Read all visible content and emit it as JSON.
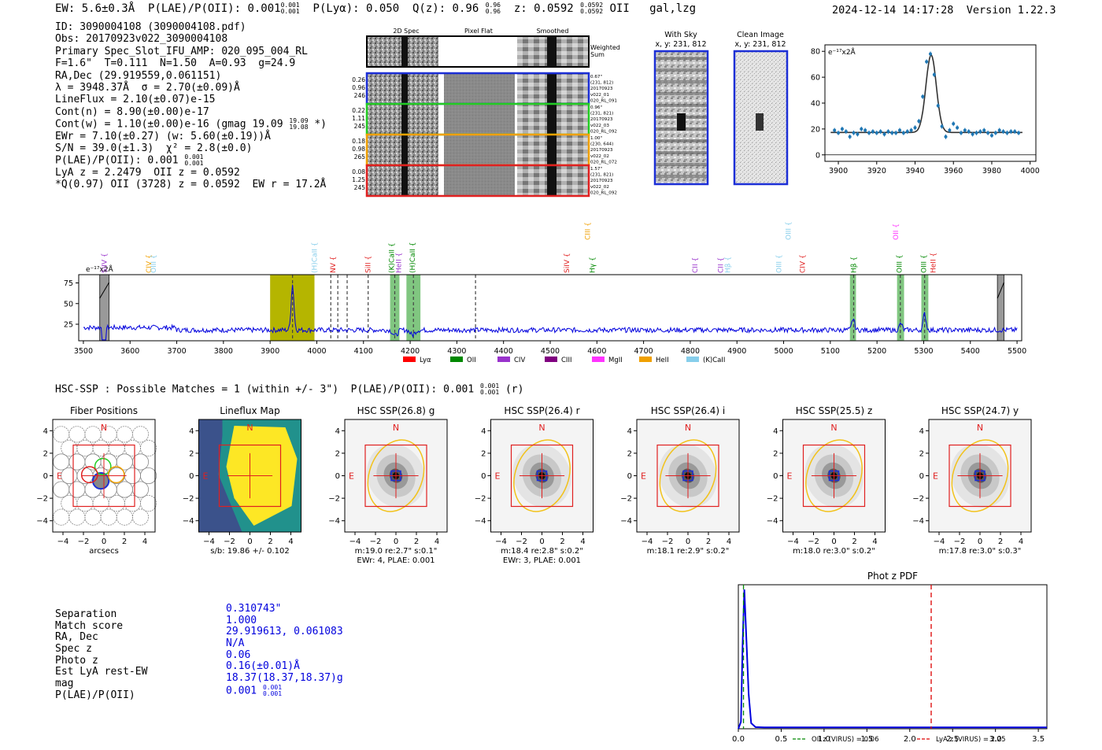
{
  "header": {
    "ew": "EW: 5.6±0.3Å",
    "plae_label": "P(LAE)/P(OII): 0.001",
    "plae_hi": "0.001",
    "plae_lo": "0.001",
    "plya": "P(Lyα): 0.050",
    "qz": "Q(z): 0.96",
    "qz_hi": "0.96",
    "qz_lo": "0.96",
    "z": "z: 0.0592",
    "z_hi": "0.0592",
    "z_lo": "0.0592",
    "z_type": "OII",
    "flags": "gal,lzg",
    "timestamp": "2024-12-14 14:17:28",
    "version": "Version 1.22.3"
  },
  "info": {
    "id": "ID: 3090004108 (3090004108.pdf)",
    "obs": "Obs: 20170923v022_3090004108",
    "primary": "Primary Spec_Slot_IFU_AMP: 020_095_004_RL",
    "fwhm": "F=1.6\"  T=0.111  N=1.50  A=0.93  g=24.9",
    "radec": "RA,Dec (29.919559,0.061151)",
    "lambda": "λ = 3948.37Å  σ = 2.70(±0.09)Å",
    "lineflux": "LineFlux = 2.10(±0.07)e-15",
    "contn": "Cont(n) = 8.90(±0.00)e-17",
    "contw": "Cont(w) = 1.10(±0.00)e-16 (gmag 19.09",
    "contw_hi": "19.09",
    "contw_lo": "19.08",
    "contw_end": "*)",
    "ewr": "EWr = 7.10(±0.27) (w: 5.60(±0.19))Å",
    "sn": "S/N = 39.0(±1.3)  χ² = 2.8(±0.0)",
    "plae": "P(LAE)/P(OII): 0.001",
    "plae_hi": "0.001",
    "plae_lo": "0.001",
    "lya": "LyA z = 2.2479  OII z = 0.0592",
    "q": "*Q(0.97) OII (3728) z = 0.0592  EW r = 17.2Å"
  },
  "cutouts": {
    "col_labels": [
      "2D Spec",
      "Pixel Flat",
      "Smoothed"
    ],
    "weighted": "Weighted Sum",
    "rows": [
      {
        "vals": [
          "0.26",
          "0.96",
          "246"
        ],
        "meta": [
          "0.67\"",
          "(231, 812)",
          "20170923",
          "v022_01",
          "020_RL_091"
        ],
        "color": "#1c2fd6"
      },
      {
        "vals": [
          "0.22",
          "1.11",
          "245"
        ],
        "meta": [
          "0.96\"",
          "(231, 821)",
          "20170923",
          "v022_03",
          "020_RL_092"
        ],
        "color": "#22cc22"
      },
      {
        "vals": [
          "0.18",
          "0.98",
          "265"
        ],
        "meta": [
          "1.00\"",
          "(230, 644)",
          "20170923",
          "v022_02",
          "020_RL_072"
        ],
        "color": "#f0a000"
      },
      {
        "vals": [
          "0.08",
          "1.25",
          "245"
        ],
        "meta": [
          "1.57\"",
          "(231, 821)",
          "20170923",
          "v022_02",
          "020_RL_092"
        ],
        "color": "#e02020"
      }
    ],
    "with_sky": "With Sky",
    "with_sky_xy": "x, y: 231, 812",
    "clean": "Clean Image",
    "clean_xy": "x, y: 231, 812"
  },
  "fit_chart": {
    "type": "scatter",
    "ylabel": "e⁻¹⁷x2Å",
    "xlim": [
      3893,
      4003
    ],
    "ylim": [
      -5,
      85
    ],
    "xticks": [
      3900,
      3920,
      3940,
      3960,
      3980,
      4000
    ],
    "yticks": [
      0,
      20,
      40,
      60,
      80
    ],
    "points": [
      [
        3898,
        19
      ],
      [
        3900,
        17
      ],
      [
        3902,
        20
      ],
      [
        3904,
        18
      ],
      [
        3906,
        14
      ],
      [
        3908,
        17
      ],
      [
        3910,
        16
      ],
      [
        3912,
        20
      ],
      [
        3914,
        19
      ],
      [
        3916,
        17
      ],
      [
        3918,
        18
      ],
      [
        3920,
        17
      ],
      [
        3922,
        18
      ],
      [
        3924,
        16
      ],
      [
        3926,
        18
      ],
      [
        3928,
        17
      ],
      [
        3930,
        17
      ],
      [
        3932,
        19
      ],
      [
        3934,
        17
      ],
      [
        3936,
        18
      ],
      [
        3938,
        19
      ],
      [
        3940,
        21
      ],
      [
        3942,
        26
      ],
      [
        3944,
        45
      ],
      [
        3946,
        72
      ],
      [
        3948,
        78
      ],
      [
        3950,
        62
      ],
      [
        3952,
        38
      ],
      [
        3954,
        22
      ],
      [
        3956,
        14
      ],
      [
        3958,
        19
      ],
      [
        3960,
        24
      ],
      [
        3962,
        21
      ],
      [
        3964,
        17
      ],
      [
        3966,
        19
      ],
      [
        3968,
        18
      ],
      [
        3970,
        16
      ],
      [
        3972,
        17
      ],
      [
        3974,
        18
      ],
      [
        3976,
        19
      ],
      [
        3978,
        17
      ],
      [
        3980,
        15
      ],
      [
        3982,
        17
      ],
      [
        3984,
        19
      ],
      [
        3986,
        18
      ],
      [
        3988,
        17
      ],
      [
        3990,
        18
      ],
      [
        3992,
        18
      ],
      [
        3994,
        17
      ]
    ],
    "fit": {
      "base": 17.3,
      "amp": 60,
      "mu": 3948.37,
      "sigma": 2.7
    }
  },
  "spectrum": {
    "type": "line",
    "ylabel": "e⁻¹⁷x2Å",
    "xlim": [
      3490,
      5510
    ],
    "ylim": [
      5,
      85
    ],
    "xticks": [
      3500,
      3600,
      3700,
      3800,
      3900,
      4000,
      4100,
      4200,
      4300,
      4400,
      4500,
      4600,
      4700,
      4800,
      4900,
      5000,
      5100,
      5200,
      5300,
      5400,
      5500
    ],
    "yticks": [
      25,
      50,
      75
    ],
    "line_labels": [
      {
        "x": 3545,
        "text": "SiIV",
        "color": "#9933cc",
        "row": 1
      },
      {
        "x": 3640,
        "text": "CIV",
        "color": "#f0a000",
        "row": 1
      },
      {
        "x": 3650,
        "text": "OIII",
        "color": "#87ceeb",
        "row": 1
      },
      {
        "x": 3995,
        "text": "(H)CaII",
        "color": "#87ceeb",
        "row": 1
      },
      {
        "x": 4035,
        "text": "NV",
        "color": "#e02020",
        "row": 1
      },
      {
        "x": 4110,
        "text": "SiII",
        "color": "#e02020",
        "row": 1
      },
      {
        "x": 4160,
        "text": "(K)CaII",
        "color": "#008800",
        "row": 1
      },
      {
        "x": 4175,
        "text": "HeII",
        "color": "#9933cc",
        "row": 1
      },
      {
        "x": 4205,
        "text": "(H)CaII",
        "color": "#008800",
        "row": 1
      },
      {
        "x": 4535,
        "text": "SiIV",
        "color": "#e02020",
        "row": 1
      },
      {
        "x": 4580,
        "text": "CIII",
        "color": "#f0a000",
        "row": 0
      },
      {
        "x": 4590,
        "text": "Hγ",
        "color": "#008800",
        "row": 1
      },
      {
        "x": 4810,
        "text": "CII",
        "color": "#9933cc",
        "row": 1
      },
      {
        "x": 4865,
        "text": "CII",
        "color": "#9933cc",
        "row": 1
      },
      {
        "x": 4880,
        "text": "Hβ",
        "color": "#87ceeb",
        "row": 1
      },
      {
        "x": 4990,
        "text": "OIII",
        "color": "#87ceeb",
        "row": 1
      },
      {
        "x": 5010,
        "text": "OIII",
        "color": "#87ceeb",
        "row": 0
      },
      {
        "x": 5040,
        "text": "CIV",
        "color": "#e02020",
        "row": 1
      },
      {
        "x": 5150,
        "text": "Hβ",
        "color": "#008800",
        "row": 1
      },
      {
        "x": 5240,
        "text": "OII",
        "color": "#ff33ff",
        "row": 0
      },
      {
        "x": 5248,
        "text": "OIII",
        "color": "#008800",
        "row": 1
      },
      {
        "x": 5300,
        "text": "OIII",
        "color": "#008800",
        "row": 1
      },
      {
        "x": 5320,
        "text": "HeII",
        "color": "#e02020",
        "row": 1
      }
    ],
    "legend": [
      {
        "label": "Lyα",
        "color": "#ff0000"
      },
      {
        "label": "OII",
        "color": "#008800"
      },
      {
        "label": "CIV",
        "color": "#9933cc"
      },
      {
        "label": "CIII",
        "color": "#800080"
      },
      {
        "label": "MgII",
        "color": "#ff33ff"
      },
      {
        "label": "HeII",
        "color": "#f0a000"
      },
      {
        "label": "(K)CaII",
        "color": "#87ceeb"
      }
    ]
  },
  "hsc": {
    "summary": "HSC-SSP : Possible Matches = 1 (within +/- 3\")  P(LAE)/P(OII): 0.001",
    "summary_hi": "0.001",
    "summary_lo": "0.001",
    "summary_end": "(r)",
    "axis_ticks": [
      -4,
      -2,
      0,
      2,
      4
    ],
    "panels": [
      {
        "title": "Fiber Positions",
        "caption1": "arcsecs",
        "caption2": "",
        "kind": "fiber"
      },
      {
        "title": "Lineflux Map",
        "caption1": "s/b: 19.86 +/- 0.102",
        "caption2": "",
        "kind": "map"
      },
      {
        "title": "HSC SSP(26.8) g",
        "caption1": "m:19.0  re:2.7\"  s:0.1\"",
        "caption2": "EWr: 4, PLAE: 0.001",
        "kind": "img"
      },
      {
        "title": "HSC SSP(26.4) r",
        "caption1": "m:18.4  re:2.8\"  s:0.2\"",
        "caption2": "EWr: 3, PLAE: 0.001",
        "kind": "img"
      },
      {
        "title": "HSC SSP(26.4) i",
        "caption1": "m:18.1  re:2.9\"  s:0.2\"",
        "caption2": "",
        "kind": "img"
      },
      {
        "title": "HSC SSP(25.5) z",
        "caption1": "m:18.0  re:3.0\"  s:0.2\"",
        "caption2": "",
        "kind": "img"
      },
      {
        "title": "HSC SSP(24.7) y",
        "caption1": "m:17.8  re:3.0\"  s:0.3\"",
        "caption2": "",
        "kind": "img"
      }
    ],
    "north": "N",
    "east": "E"
  },
  "match": {
    "labels": [
      "Separation",
      "Match score",
      "RA, Dec",
      "Spec z",
      "Photo z",
      "Est LyA rest-EW",
      "mag",
      "P(LAE)/P(OII)"
    ],
    "values": [
      "0.310743\"",
      "1.000",
      "29.919613, 0.061083",
      "N/A",
      "0.06",
      "0.16(±0.01)Å",
      "18.37(18.37,18.37)g",
      "0.001"
    ],
    "plae_hi": "0.001",
    "plae_lo": "0.001"
  },
  "chart_data": {
    "type": "line",
    "title": "Phot z PDF",
    "xlim": [
      0,
      3.6
    ],
    "xticks": [
      0.0,
      0.5,
      1.0,
      1.5,
      2.0,
      2.5,
      3.0,
      3.5
    ],
    "pdf": [
      [
        0.0,
        0
      ],
      [
        0.03,
        0.05
      ],
      [
        0.05,
        0.6
      ],
      [
        0.07,
        1.0
      ],
      [
        0.09,
        0.7
      ],
      [
        0.12,
        0.25
      ],
      [
        0.15,
        0.04
      ],
      [
        0.2,
        0.012
      ],
      [
        0.3,
        0.01
      ],
      [
        3.6,
        0.01
      ]
    ],
    "vlines": [
      {
        "x": 0.06,
        "label": "OII z (VIRUS) = 0.06",
        "color": "#008800"
      },
      {
        "x": 2.25,
        "label": "LyA z (VIRUS) = 2.25",
        "color": "#dd0000"
      }
    ]
  }
}
